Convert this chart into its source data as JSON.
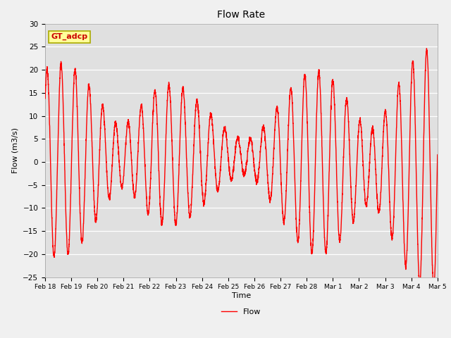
{
  "title": "Flow Rate",
  "xlabel": "Time",
  "ylabel": "Flow (m3/s)",
  "ylim": [
    -25,
    30
  ],
  "yticks": [
    -25,
    -20,
    -15,
    -10,
    -5,
    0,
    5,
    10,
    15,
    20,
    25,
    30
  ],
  "line_color": "#ff0000",
  "line_width": 1.0,
  "fig_bg_color": "#f0f0f0",
  "plot_bg_color": "#e0e0e0",
  "legend_label": "Flow",
  "annotation_text": "GT_adcp",
  "annotation_bg": "#ffff99",
  "annotation_border": "#aaaa00",
  "tick_labels": [
    "Feb 18",
    "Feb 19",
    "Feb 20",
    "Feb 21",
    "Feb 22",
    "Feb 23",
    "Feb 24",
    "Feb 25",
    "Feb 26",
    "Feb 27",
    "Feb 28",
    "Mar 1",
    "Mar 2",
    "Mar 3",
    "Mar 4",
    "Mar 5"
  ],
  "tick_positions": [
    0,
    1,
    2,
    3,
    4,
    5,
    6,
    7,
    8,
    9,
    10,
    11,
    12,
    13,
    14,
    15
  ]
}
